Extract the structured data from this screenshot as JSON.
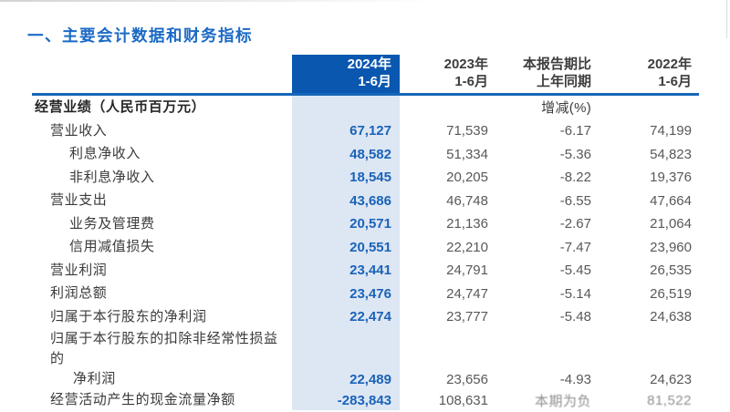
{
  "page": {
    "title": "一、主要会计数据和财务指标"
  },
  "colors": {
    "title_blue": "#1b6ac6",
    "header_highlight_bg": "#0a57b0",
    "column_highlight_bg": "#dde6f3",
    "divider_blue": "#1766b8",
    "current_value_blue": "#1a63b8",
    "body_text": "#3a3a3a",
    "secondary_value_gray": "#58585a"
  },
  "table": {
    "columns": {
      "cur": {
        "line1": "2024年",
        "line2": "1-6月"
      },
      "prev": {
        "line1": "2023年",
        "line2": "1-6月"
      },
      "chg": {
        "line1": "本报告期比",
        "line2": "上年同期"
      },
      "prev2": {
        "line1": "2022年",
        "line2": "1-6月"
      }
    },
    "section": {
      "label": "经营业绩（人民币百万元）",
      "chg_note": "增减(%)"
    },
    "rows": [
      {
        "label": "营业收入",
        "indent": 1,
        "cur": "67,127",
        "prev": "71,539",
        "chg": "-6.17",
        "prev2": "74,199"
      },
      {
        "label": "利息净收入",
        "indent": 2,
        "cur": "48,582",
        "prev": "51,334",
        "chg": "-5.36",
        "prev2": "54,823"
      },
      {
        "label": "非利息净收入",
        "indent": 2,
        "cur": "18,545",
        "prev": "20,205",
        "chg": "-8.22",
        "prev2": "19,376"
      },
      {
        "label": "营业支出",
        "indent": 1,
        "cur": "43,686",
        "prev": "46,748",
        "chg": "-6.55",
        "prev2": "47,664"
      },
      {
        "label": "业务及管理费",
        "indent": 2,
        "cur": "20,571",
        "prev": "21,136",
        "chg": "-2.67",
        "prev2": "21,064"
      },
      {
        "label": "信用减值损失",
        "indent": 2,
        "cur": "20,551",
        "prev": "22,210",
        "chg": "-7.47",
        "prev2": "23,960"
      },
      {
        "label": "营业利润",
        "indent": 1,
        "cur": "23,441",
        "prev": "24,791",
        "chg": "-5.45",
        "prev2": "26,535"
      },
      {
        "label": "利润总额",
        "indent": 1,
        "cur": "23,476",
        "prev": "24,747",
        "chg": "-5.14",
        "prev2": "26,519"
      },
      {
        "label": "归属于本行股东的净利润",
        "indent": 1,
        "cur": "22,474",
        "prev": "23,777",
        "chg": "-5.48",
        "prev2": "24,638"
      },
      {
        "label": "归属于本行股东的扣除非经常性损益的",
        "label2": "净利润",
        "indent": 1,
        "cur": "22,489",
        "prev": "23,656",
        "chg": "-4.93",
        "prev2": "24,623"
      },
      {
        "label": "经营活动产生的现金流量净额",
        "indent": 1,
        "cur": "-283,843",
        "prev": "108,631",
        "chg": "本期为负",
        "prev2": "81,522",
        "faded": [
          "chg",
          "prev2"
        ]
      }
    ]
  }
}
